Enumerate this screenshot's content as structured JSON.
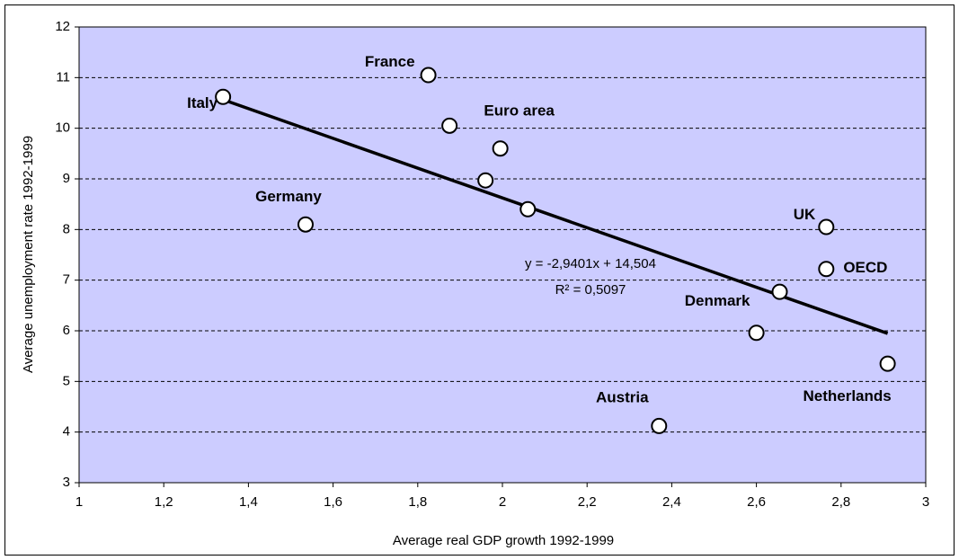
{
  "chart_data": {
    "type": "scatter",
    "xlabel": "Average real GDP growth 1992-1999",
    "ylabel": "Average unemployment rate 1992-1999",
    "x": [
      1.34,
      1.535,
      1.825,
      1.875,
      1.995,
      1.96,
      2.06,
      2.37,
      2.6,
      2.655,
      2.765,
      2.765,
      2.91
    ],
    "values": [
      10.62,
      8.1,
      11.05,
      10.05,
      9.6,
      8.97,
      8.4,
      4.12,
      5.96,
      6.77,
      8.05,
      7.22,
      5.35
    ],
    "labels": [
      "Italy",
      "Germany",
      "France",
      null,
      "Euro area",
      null,
      null,
      "Austria",
      null,
      "Denmark",
      "UK",
      "OECD",
      "Netherlands"
    ],
    "trendline": {
      "slope": -2.9401,
      "intercept": 14.504,
      "x_range": [
        1.34,
        2.91
      ],
      "equation": "y = -2,9401x + 14,504",
      "r_squared": "R² = 0,5097"
    },
    "xlim": [
      1,
      3
    ],
    "xticks": [
      1,
      {
        "value": 1.2,
        "label": "1,2"
      },
      {
        "value": 1.4,
        "label": "1,4"
      },
      {
        "value": 1.6,
        "label": "1,6"
      },
      {
        "value": 1.8,
        "label": "1,8"
      },
      2,
      {
        "value": 2.2,
        "label": "2,2"
      },
      {
        "value": 2.4,
        "label": "2,4"
      },
      {
        "value": 2.6,
        "label": "2,6"
      },
      {
        "value": 2.8,
        "label": "2,8"
      },
      3
    ],
    "ylim": [
      3,
      12
    ],
    "yticks": [
      3,
      4,
      5,
      6,
      7,
      8,
      9,
      10,
      11,
      12
    ],
    "grid": true,
    "plot_color": "#ccccff"
  }
}
